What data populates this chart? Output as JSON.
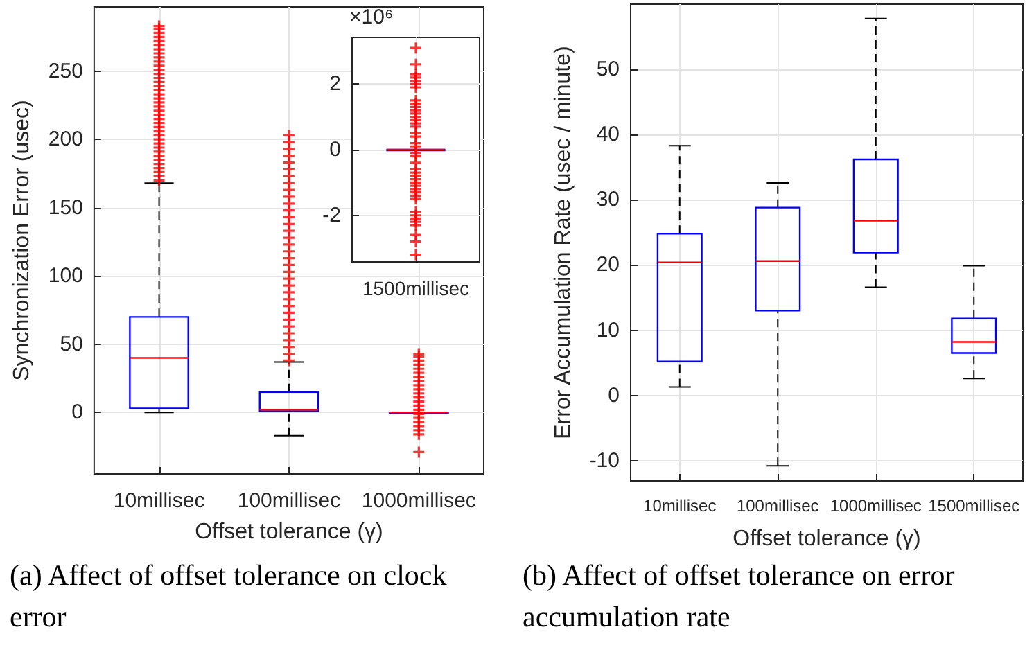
{
  "chart_data": [
    {
      "type": "box",
      "title": "(a) Affect of offset tolerance on clock error",
      "xlabel": "Offset tolerance (γ)",
      "ylabel": "Synchronization Error (usec)",
      "categories": [
        "10millisec",
        "100millisec",
        "1000millisec"
      ],
      "ylim": [
        -45,
        297
      ],
      "yticks": [
        0,
        50,
        100,
        150,
        200,
        250
      ],
      "grid": true,
      "series": [
        {
          "color": "#0000ff",
          "boxes": [
            {
              "low": 0,
              "q1": 3,
              "median": 40,
              "q3": 70,
              "high": 168,
              "outliers": [
                170,
                173,
                176,
                179,
                182,
                185,
                188,
                191,
                194,
                197,
                200,
                203,
                206,
                209,
                212,
                215,
                218,
                221,
                224,
                227,
                230,
                233,
                236,
                239,
                242,
                245,
                248,
                251,
                254,
                257,
                260,
                263,
                266,
                269,
                272,
                275,
                278,
                281,
                283
              ]
            },
            {
              "low": -17,
              "q1": 1,
              "median": 2,
              "q3": 15,
              "high": 37,
              "outliers": [
                38,
                43,
                48,
                53,
                58,
                63,
                68,
                73,
                78,
                83,
                88,
                93,
                98,
                103,
                108,
                113,
                118,
                123,
                128,
                133,
                138,
                143,
                148,
                153,
                158,
                163,
                168,
                173,
                178,
                183,
                188,
                193,
                198,
                203
              ]
            },
            {
              "low": 0,
              "q1": 0,
              "median": 0,
              "q3": 0,
              "high": 0,
              "outliers": [
                -29,
                -16,
                -13,
                -10,
                -7,
                -4,
                -1,
                2,
                5,
                8,
                11,
                14,
                17,
                20,
                23,
                26,
                29,
                32,
                35,
                38,
                41,
                43
              ]
            }
          ]
        }
      ]
    },
    {
      "type": "box",
      "categories": [
        "1500millisec"
      ],
      "ylim": [
        -3.42,
        3.42
      ],
      "yticks": [
        -2,
        0,
        2
      ],
      "grid": true,
      "annotations": [
        "×10⁶"
      ],
      "series": [
        {
          "color": "#0000ff",
          "boxes": [
            {
              "low": 0,
              "q1": 0,
              "median": 0,
              "q3": 0,
              "high": 0,
              "outliers": [
                -3.2,
                -2.8,
                -2.6,
                -2.3,
                -2.2,
                -2.1,
                -2.0,
                -1.9,
                -1.5,
                -1.4,
                -1.3,
                -1.2,
                -1.1,
                -1.0,
                -0.9,
                -0.8,
                -0.7,
                -0.6,
                -0.4,
                -0.2,
                -0.1,
                0.1,
                0.2,
                0.4,
                0.5,
                0.7,
                0.8,
                0.9,
                1.0,
                1.1,
                1.2,
                1.3,
                1.4,
                1.5,
                1.9,
                2.0,
                2.1,
                2.2,
                2.3,
                2.6,
                3.1
              ]
            }
          ]
        }
      ]
    },
    {
      "type": "box",
      "title": "(b) Affect of offset tolerance on error accumulation rate",
      "xlabel": "Offset tolerance (γ)",
      "ylabel": "Error Accumulation Rate (usec / minute)",
      "categories": [
        "10millisec",
        "100millisec",
        "1000millisec",
        "1500millisec"
      ],
      "ylim": [
        -13.1,
        60
      ],
      "yticks": [
        -10,
        0,
        10,
        20,
        30,
        40,
        50
      ],
      "grid": true,
      "series": [
        {
          "color": "#0000ff",
          "boxes": [
            {
              "low": 1.3,
              "q1": 5.2,
              "median": 20.4,
              "q3": 24.8,
              "high": 38.3
            },
            {
              "low": -10.8,
              "q1": 13,
              "median": 20.6,
              "q3": 28.8,
              "high": 32.6
            },
            {
              "low": 16.6,
              "q1": 21.9,
              "median": 26.8,
              "q3": 36.2,
              "high": 57.8
            },
            {
              "low": 2.6,
              "q1": 6.5,
              "median": 8.2,
              "q3": 11.8,
              "high": 19.9
            }
          ]
        }
      ]
    }
  ]
}
